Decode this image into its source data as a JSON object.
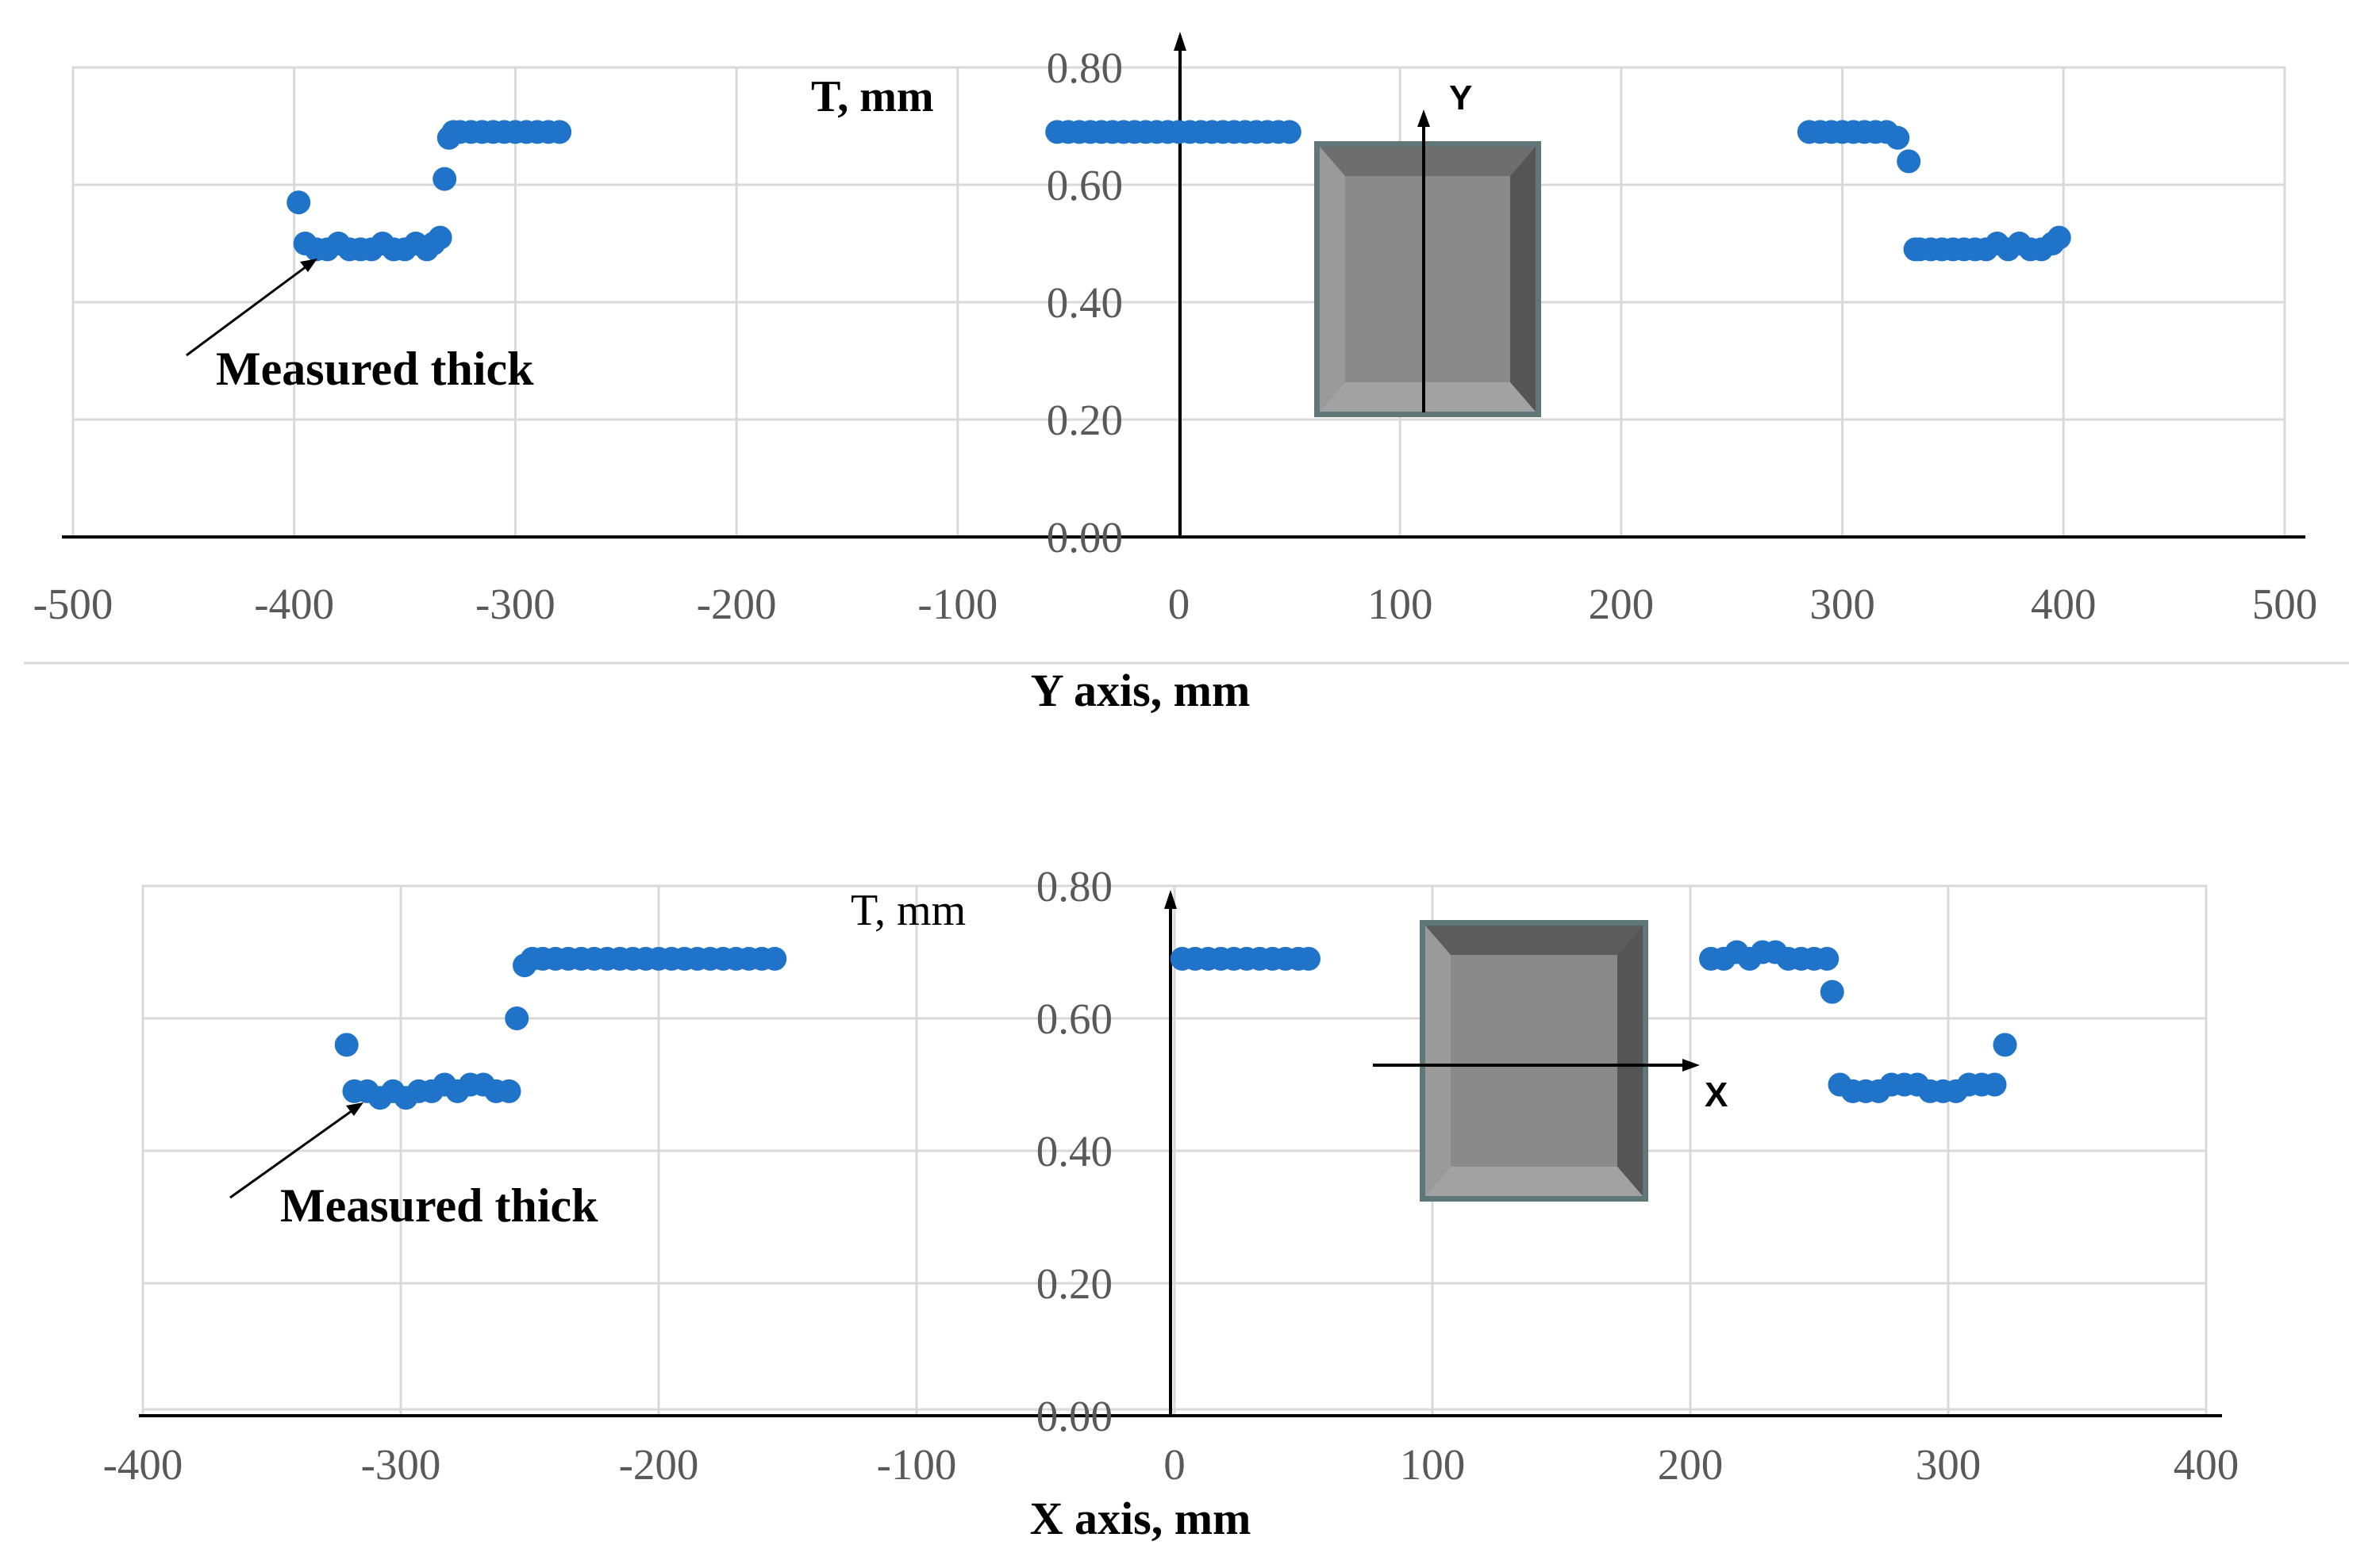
{
  "chart_data": [
    {
      "type": "scatter",
      "xlabel": "Y axis, mm",
      "ylabel": "T, mm",
      "xlim": [
        -500,
        500
      ],
      "ylim": [
        0,
        0.8
      ],
      "xticks": [
        "-500",
        "-400",
        "-300",
        "-200",
        "-100",
        "0",
        "100",
        "200",
        "300",
        "400",
        "500"
      ],
      "yticks": [
        "0.00",
        "0.20",
        "0.40",
        "0.60",
        "0.80"
      ],
      "grid": true,
      "annotation": "Measured thick",
      "direction_label": "Y",
      "marker_color": "#1f73c9",
      "series": [
        {
          "x": [
            -398,
            -395,
            -390,
            -385,
            -380,
            -375,
            -370,
            -365,
            -360,
            -355,
            -350,
            -345,
            -340,
            -337,
            -334,
            -332,
            -330,
            -328,
            -325,
            -320,
            -315,
            -310,
            -305,
            -300,
            -295,
            -290,
            -285,
            -280,
            -55,
            -50,
            -45,
            -40,
            -35,
            -30,
            -25,
            -20,
            -15,
            -10,
            -5,
            0,
            5,
            10,
            15,
            20,
            25,
            30,
            35,
            40,
            45,
            50,
            285,
            290,
            295,
            300,
            305,
            310,
            315,
            320,
            325,
            330,
            333,
            335,
            340,
            345,
            350,
            355,
            360,
            365,
            370,
            375,
            380,
            385,
            390,
            395,
            398
          ],
          "y": [
            0.57,
            0.5,
            0.49,
            0.49,
            0.5,
            0.49,
            0.49,
            0.49,
            0.5,
            0.49,
            0.49,
            0.5,
            0.49,
            0.5,
            0.51,
            0.61,
            0.68,
            0.69,
            0.69,
            0.69,
            0.69,
            0.69,
            0.69,
            0.69,
            0.69,
            0.69,
            0.69,
            0.69,
            0.69,
            0.69,
            0.69,
            0.69,
            0.69,
            0.69,
            0.69,
            0.69,
            0.69,
            0.69,
            0.69,
            0.69,
            0.69,
            0.69,
            0.69,
            0.69,
            0.69,
            0.69,
            0.69,
            0.69,
            0.69,
            0.69,
            0.69,
            0.69,
            0.69,
            0.69,
            0.69,
            0.69,
            0.69,
            0.69,
            0.68,
            0.64,
            0.49,
            0.49,
            0.49,
            0.49,
            0.49,
            0.49,
            0.49,
            0.49,
            0.5,
            0.49,
            0.5,
            0.49,
            0.49,
            0.5,
            0.51
          ]
        }
      ]
    },
    {
      "type": "scatter",
      "xlabel": "X axis, mm",
      "ylabel": "T, mm",
      "xlim": [
        -400,
        400
      ],
      "ylim": [
        0,
        0.8
      ],
      "xticks": [
        "-400",
        "-300",
        "-200",
        "-100",
        "0",
        "100",
        "200",
        "300",
        "400"
      ],
      "yticks": [
        "0.00",
        "0.20",
        "0.40",
        "0.60",
        "0.80"
      ],
      "grid": true,
      "annotation": "Measured thick",
      "direction_label": "X",
      "marker_color": "#1f73c9",
      "series": [
        {
          "x": [
            -321,
            -318,
            -313,
            -308,
            -303,
            -298,
            -293,
            -288,
            -283,
            -278,
            -273,
            -268,
            -263,
            -258,
            -255,
            -252,
            -249,
            -245,
            -240,
            -235,
            -230,
            -225,
            -220,
            -215,
            -210,
            -205,
            -200,
            -195,
            -190,
            -185,
            -180,
            -175,
            -170,
            -165,
            -160,
            -155,
            3,
            8,
            13,
            18,
            23,
            28,
            33,
            38,
            43,
            48,
            52,
            208,
            213,
            218,
            223,
            228,
            233,
            238,
            243,
            248,
            253,
            255,
            258,
            263,
            268,
            273,
            278,
            283,
            288,
            293,
            298,
            303,
            308,
            313,
            318,
            322
          ],
          "y": [
            0.56,
            0.49,
            0.49,
            0.48,
            0.49,
            0.48,
            0.49,
            0.49,
            0.5,
            0.49,
            0.5,
            0.5,
            0.49,
            0.49,
            0.6,
            0.68,
            0.69,
            0.69,
            0.69,
            0.69,
            0.69,
            0.69,
            0.69,
            0.69,
            0.69,
            0.69,
            0.69,
            0.69,
            0.69,
            0.69,
            0.69,
            0.69,
            0.69,
            0.69,
            0.69,
            0.69,
            0.69,
            0.69,
            0.69,
            0.69,
            0.69,
            0.69,
            0.69,
            0.69,
            0.69,
            0.69,
            0.69,
            0.69,
            0.69,
            0.7,
            0.69,
            0.7,
            0.7,
            0.69,
            0.69,
            0.69,
            0.69,
            0.64,
            0.5,
            0.49,
            0.49,
            0.49,
            0.5,
            0.5,
            0.5,
            0.49,
            0.49,
            0.49,
            0.5,
            0.5,
            0.5,
            0.56
          ]
        }
      ]
    }
  ]
}
